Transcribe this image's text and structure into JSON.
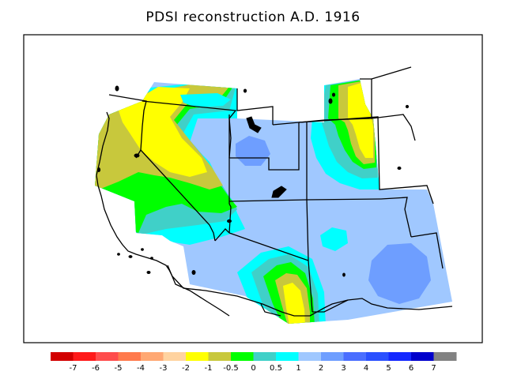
{
  "title": "PDSI reconstruction A.D. 1916",
  "legend": {
    "colors": [
      "#d20000",
      "#ff1a1a",
      "#ff4d4d",
      "#ff7a4d",
      "#ffa873",
      "#ffd3a0",
      "#ffff00",
      "#c8c83c",
      "#00ff00",
      "#40d0c8",
      "#00ffff",
      "#a0c8ff",
      "#6e9eff",
      "#4a6eff",
      "#2a50ff",
      "#1428ff",
      "#0000cc",
      "#828282"
    ],
    "labels": [
      "-7",
      "-6",
      "-5",
      "-4",
      "-3",
      "-2",
      "-1",
      "-0.5",
      "0",
      "0.5",
      "1",
      "2",
      "3",
      "4",
      "5",
      "6",
      "7"
    ]
  },
  "colors": {
    "yellow": "#ffff00",
    "olive": "#c8c83c",
    "green": "#00ff00",
    "teal": "#40d0c8",
    "cyan": "#00ffff",
    "light_blue": "#a0c8ff",
    "mid_blue": "#6e9eff"
  }
}
